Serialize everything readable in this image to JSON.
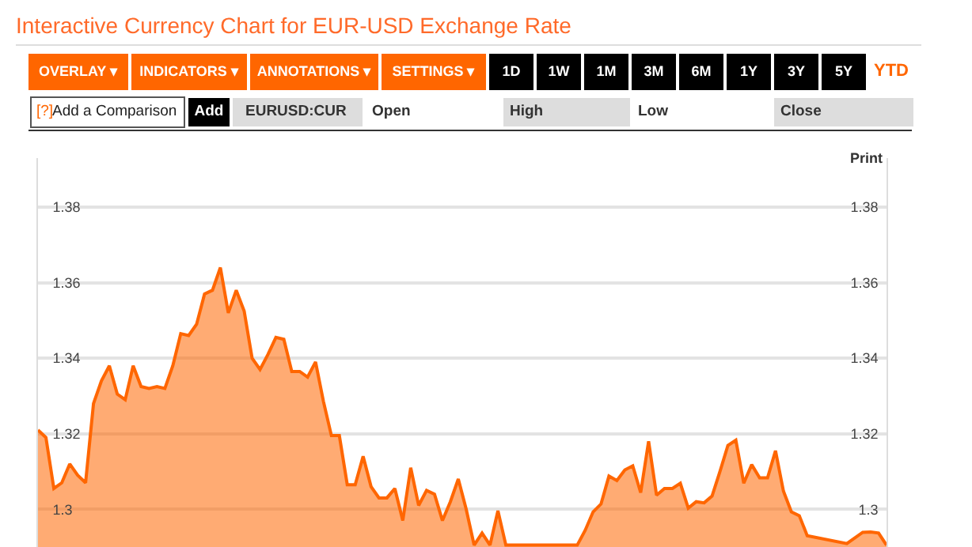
{
  "chart_data": {
    "type": "area",
    "title": "Interactive Currency Chart for EUR-USD Exchange Rate",
    "annotations": [
      "OVERLAY ▾",
      "INDICATORS ▾",
      "ANNOTATIONS ▾",
      "SETTINGS ▾",
      "1D",
      "1W",
      "1M",
      "3M",
      "6M",
      "1Y",
      "3Y",
      "5Y",
      "YTD",
      "[?]",
      "Add a Comparison",
      "Add",
      "EURUSD:CUR",
      "Open",
      "High",
      "Low",
      "Close",
      "Print"
    ],
    "categories": [
      null,
      null,
      null,
      null,
      null,
      null,
      null,
      null,
      null,
      null,
      null,
      null,
      null,
      null,
      null,
      null,
      null,
      null,
      null,
      null,
      null,
      null,
      null,
      null,
      null,
      null,
      null,
      null,
      null,
      null,
      null,
      null,
      null,
      null,
      null,
      null,
      null,
      null,
      null,
      null,
      null,
      null,
      null,
      null,
      null,
      null,
      null,
      null,
      null,
      null,
      null,
      null,
      null,
      null,
      null,
      null,
      null,
      null,
      null,
      null,
      null,
      null,
      null,
      null,
      null,
      null,
      null,
      null,
      null,
      null,
      null,
      null,
      null,
      null,
      null,
      null,
      null,
      null,
      null,
      null,
      null,
      null,
      null,
      null,
      null,
      null,
      null,
      null,
      null,
      null,
      null,
      null,
      null,
      null,
      null,
      null,
      null,
      null,
      null,
      null,
      null,
      null,
      null,
      null,
      null,
      null,
      null,
      null
    ],
    "series": [
      {
        "color": "#ff6600",
        "values": [
          1.321,
          1.319,
          1.3055,
          1.307,
          1.312,
          1.309,
          1.307,
          1.328,
          1.334,
          1.338,
          1.3305,
          1.329,
          1.338,
          1.3325,
          1.332,
          1.3325,
          1.332,
          1.338,
          1.3465,
          1.346,
          1.349,
          1.357,
          1.358,
          1.364,
          1.352,
          1.358,
          1.3525,
          1.34,
          1.337,
          1.341,
          1.3455,
          1.345,
          1.3365,
          1.3365,
          1.335,
          1.339,
          1.3285,
          1.3195,
          1.3195,
          1.3065,
          1.3065,
          1.314,
          1.306,
          1.303,
          1.303,
          1.3055,
          1.297,
          1.311,
          1.301,
          1.305,
          1.304,
          1.297,
          1.302,
          1.308,
          1.3,
          1.2905,
          1.2937,
          1.2905,
          1.2996,
          1.2905,
          null,
          null,
          null,
          null,
          null,
          null,
          null,
          null,
          1.2905,
          1.2944,
          1.2993,
          1.3014,
          1.3088,
          1.3076,
          1.3104,
          1.3115,
          1.3044,
          1.318,
          1.3037,
          1.3055,
          1.3055,
          1.3069,
          1.3003,
          1.302,
          1.3017,
          1.3035,
          1.31,
          1.3169,
          1.3183,
          1.3069,
          1.3118,
          1.3083,
          1.3083,
          1.3155,
          1.3048,
          1.2993,
          1.2983,
          1.293,
          null,
          null,
          null,
          null,
          1.2909,
          null,
          1.2939,
          1.294,
          1.2937,
          1.2905
        ]
      }
    ],
    "ylim": [
      1.29,
      1.393
    ],
    "yticks": [
      1.3,
      1.32,
      1.34,
      1.36,
      1.38
    ],
    "y2lim": [
      1.29,
      1.393
    ],
    "y2ticks": [
      1.3,
      1.32,
      1.34,
      1.36,
      1.38
    ],
    "tick_labels": "y",
    "grid": "y"
  }
}
